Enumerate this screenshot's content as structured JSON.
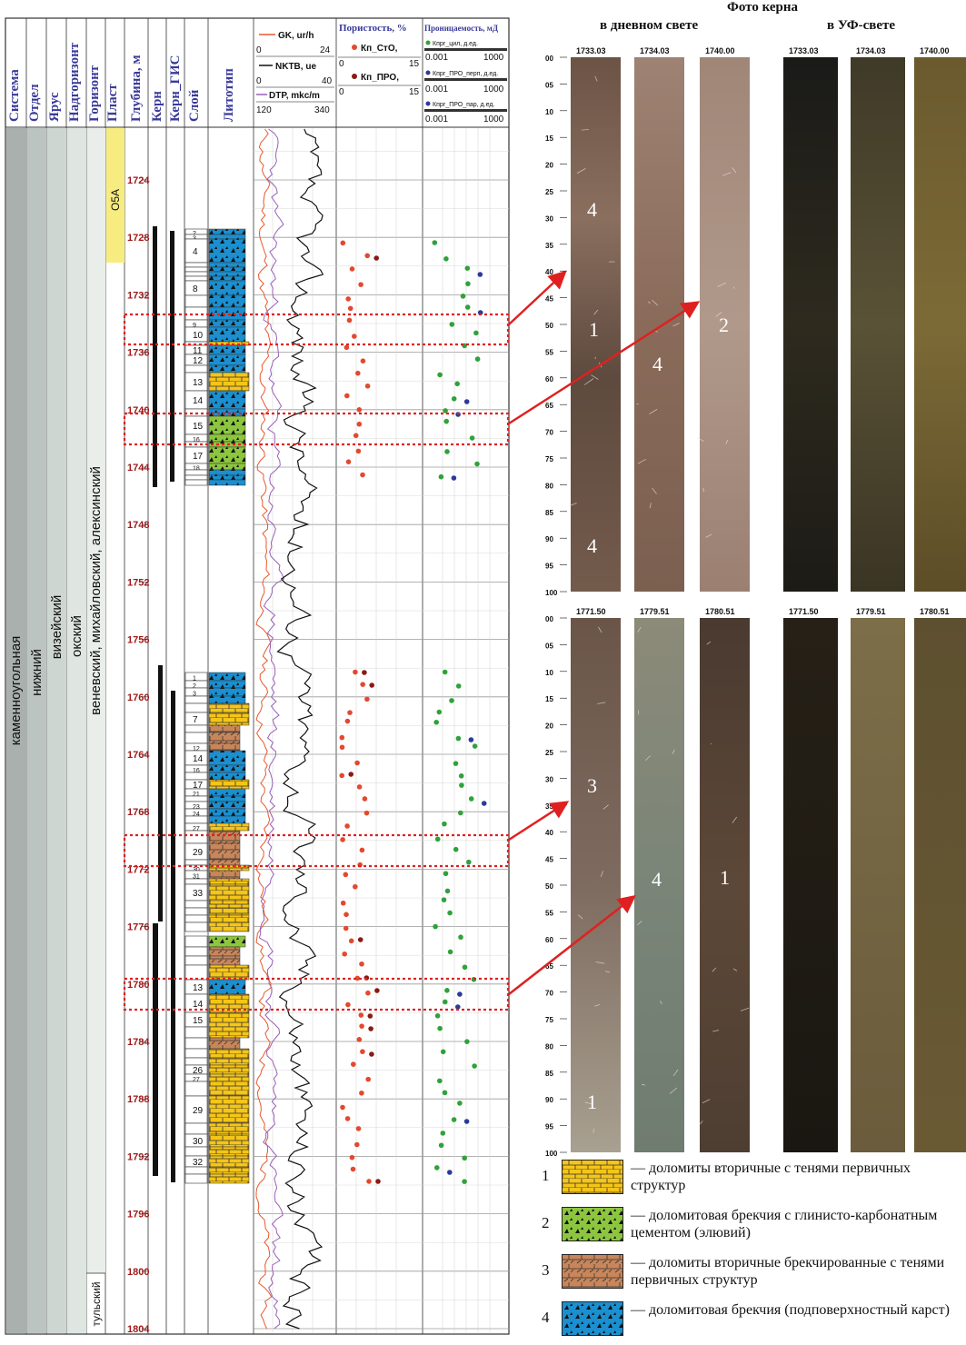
{
  "headers": [
    "Система",
    "Отдел",
    "Ярус",
    "Надгоризонт",
    "Горизонт",
    "Пласт",
    "Глубина, м",
    "Керн",
    "Керн_ГИС",
    "Слой",
    "Литотип"
  ],
  "stratigraphy": {
    "system": "каменноугольная",
    "department": "нижний",
    "stage": "визейский",
    "superhorizon": "окский",
    "horizon_main": "веневский, михайловский, алексинский",
    "horizon_lower": "тульский",
    "plast": "О5А"
  },
  "depth_labels": [
    "1724",
    "1728",
    "1732",
    "1736",
    "1740",
    "1744",
    "1748",
    "1752",
    "1756",
    "1760",
    "1764",
    "1768",
    "1772",
    "1776",
    "1780",
    "1784",
    "1788",
    "1792",
    "1796",
    "1800",
    "1804"
  ],
  "curve_track": {
    "gk": {
      "label": "GK, ur/h",
      "min": "0",
      "max": "24",
      "color": "#e8582a"
    },
    "nktv": {
      "label": "NKTB, ue",
      "min": "0",
      "max": "40",
      "color": "#111111"
    },
    "dtp": {
      "label": "DTP, mkc/m",
      "min": "120",
      "max": "340",
      "color": "#9a5fb8"
    }
  },
  "porosity_track": {
    "title": "Пористость, %",
    "kp_sto": "Кп_СтО,",
    "kp_pro": "Кп_ПРО,",
    "min": "0",
    "max": "15",
    "colors": {
      "sto": "#e2492e",
      "pro": "#8a1a14"
    }
  },
  "perm_track": {
    "title": "Проницаемость, мД",
    "k1": "Кпрг_цил, д.ед.",
    "k2": "Кпрг_ПРО_перп, д.ед.",
    "k3": "Кпрг_ПРО_пар, д.ед.",
    "min": "0.001",
    "max": "1000",
    "colors": {
      "cyl": "#2fa23a",
      "perp": "#2a3a9a",
      "par": "#2a3a9a"
    }
  },
  "layers_upper": [
    "2",
    "3",
    "4",
    "8",
    "9",
    "10",
    "11",
    "12",
    "13",
    "14",
    "15",
    "16",
    "17",
    "18"
  ],
  "layers_lower": [
    "1",
    "2",
    "3",
    "7",
    "12",
    "14",
    "16",
    "17",
    "21",
    "23",
    "24",
    "27",
    "29",
    "30",
    "31",
    "33",
    "13",
    "14",
    "15",
    "26",
    "27",
    "29",
    "30",
    "32"
  ],
  "photo": {
    "title": "Фото керна",
    "daylight": "в дневном свете",
    "uv": "в УФ-свете",
    "top_depths": [
      "1733.03",
      "1734.03",
      "1740.00"
    ],
    "bottom_depths": [
      "1771.50",
      "1779.51",
      "1780.51"
    ],
    "scale": [
      "00",
      "05",
      "10",
      "15",
      "20",
      "25",
      "30",
      "35",
      "40",
      "45",
      "50",
      "55",
      "60",
      "65",
      "70",
      "75",
      "80",
      "85",
      "90",
      "95",
      "100"
    ],
    "top_marks": [
      {
        "t": "4"
      },
      {
        "t": "1"
      },
      {
        "t": "4"
      },
      {
        "t": "2"
      },
      {
        "t": "4"
      }
    ],
    "bottom_marks": [
      {
        "t": "3"
      },
      {
        "t": "4"
      },
      {
        "t": "1"
      },
      {
        "t": "1"
      }
    ]
  },
  "legend": [
    {
      "n": "1",
      "text": "— доломиты вторичные с тенями первичных структур",
      "color": "#f5c518",
      "pattern": "brick"
    },
    {
      "n": "2",
      "text": "— доломитовая брекчия с глинисто-карбонатным цементом (элювий)",
      "color": "#8cc63f",
      "pattern": "breccia"
    },
    {
      "n": "3",
      "text": "— доломиты вторичные брекчированные с тенями первичных структур",
      "color": "#c8865a",
      "pattern": "brbrick"
    },
    {
      "n": "4",
      "text": "— доломитовая брекчия (подповерхностный карст)",
      "color": "#1b8fcf",
      "pattern": "breccia"
    }
  ]
}
